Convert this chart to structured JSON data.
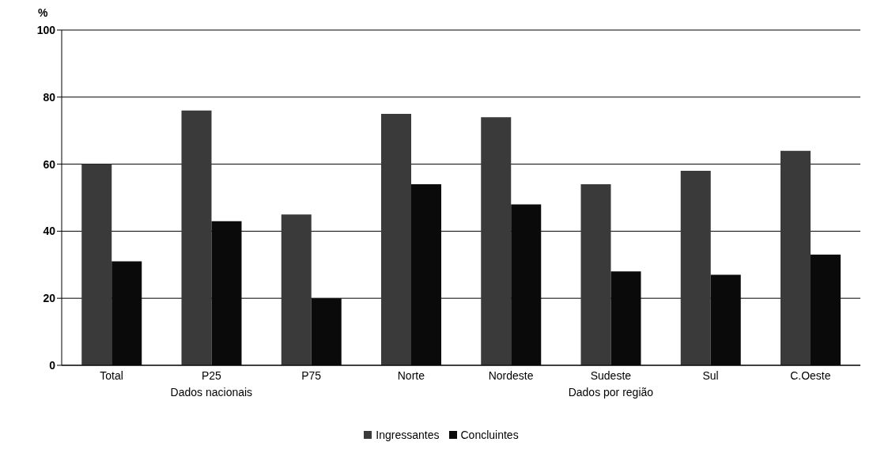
{
  "chart_data": {
    "type": "bar",
    "ylabel": "%",
    "categories": [
      "Total",
      "P25",
      "P75",
      "Norte",
      "Nordeste",
      "Sudeste",
      "Sul",
      "C.Oeste"
    ],
    "series": [
      {
        "name": "Ingressantes",
        "color": "#3a3a3a",
        "values": [
          60,
          76,
          45,
          75,
          74,
          54,
          58,
          64
        ]
      },
      {
        "name": "Concluintes",
        "color": "#0a0a0a",
        "values": [
          31,
          43,
          20,
          54,
          48,
          28,
          27,
          33
        ]
      }
    ],
    "ylim": [
      0,
      100
    ],
    "yticks": [
      0,
      20,
      40,
      60,
      80,
      100
    ],
    "grid": "y",
    "legend": "bottom",
    "annotations": [
      "Dados nacionais",
      "Dados por região"
    ]
  }
}
